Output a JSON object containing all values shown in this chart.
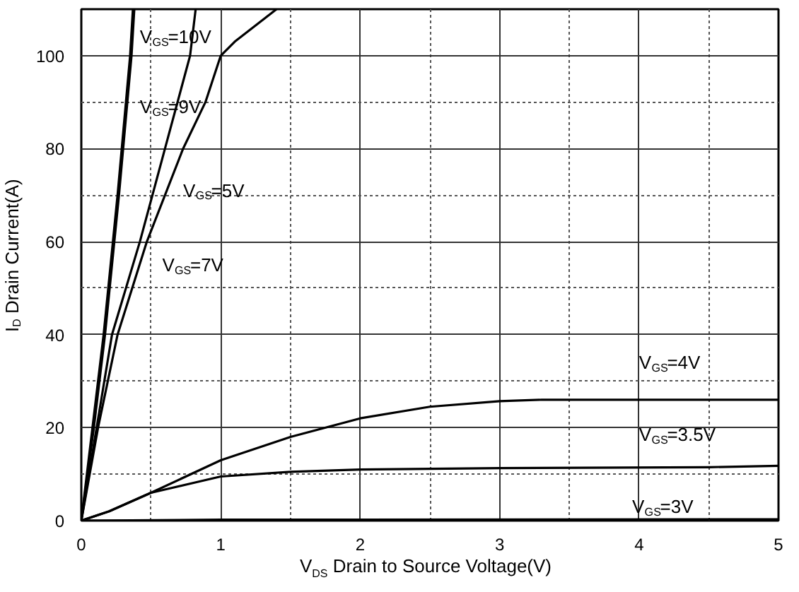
{
  "chart_data": {
    "type": "line",
    "xlabel": "V$_{DS}$ Drain to Source Voltage(V)",
    "ylabel": "I$_{D}$ Drain Current(A)",
    "xlim": [
      0,
      5
    ],
    "ylim": [
      0,
      110
    ],
    "xticks": [
      0,
      1,
      2,
      3,
      4,
      5
    ],
    "yticks": [
      0,
      20,
      40,
      60,
      80,
      100
    ],
    "grid": true,
    "marker": "none",
    "line_style": "solid",
    "series": [
      {
        "color": "#000000",
        "x": [
          0,
          0.08,
          0.16,
          0.26,
          0.35,
          0.37
        ],
        "values": [
          0,
          20,
          40,
          70,
          100,
          110
        ]
      },
      {
        "color": "#000000",
        "x": [
          0,
          0.09,
          0.17,
          0.27,
          0.36,
          0.38
        ],
        "values": [
          0,
          20,
          40,
          70,
          100,
          110
        ]
      },
      {
        "color": "#000000",
        "x": [
          0,
          0.11,
          0.22,
          0.42,
          0.6,
          0.78,
          0.82
        ],
        "values": [
          0,
          20,
          40,
          60,
          80,
          100,
          110
        ]
      },
      {
        "color": "#000000",
        "x": [
          0,
          0.12,
          0.26,
          0.47,
          0.73,
          0.89,
          1.0,
          1.1,
          1.4
        ],
        "values": [
          0,
          20,
          40,
          60,
          80,
          90,
          100,
          103,
          110
        ]
      },
      {
        "color": "#000000",
        "x": [
          0,
          0.2,
          0.5,
          1,
          1.5,
          2,
          2.5,
          3,
          3.3,
          5
        ],
        "values": [
          0,
          2,
          6,
          13,
          18,
          22,
          24.5,
          25.7,
          26,
          26
        ]
      },
      {
        "color": "#000000",
        "x": [
          0,
          0.2,
          0.5,
          1,
          1.5,
          2,
          3,
          4.5,
          5
        ],
        "values": [
          0,
          2,
          6,
          9.5,
          10.5,
          11,
          11.3,
          11.5,
          11.8
        ]
      },
      {
        "color": "#000000",
        "x": [
          0,
          1,
          5
        ],
        "values": [
          0,
          0.2,
          0.3
        ]
      }
    ],
    "annotations": [
      "V$_{GS}$=10V",
      "V$_{GS}$=9V",
      "V$_{GS}$=5V",
      "V$_{GS}$=7V",
      "V$_{GS}$=4V",
      "V$_{GS}$=3.5V",
      "V$_{GS}$=3V"
    ]
  }
}
